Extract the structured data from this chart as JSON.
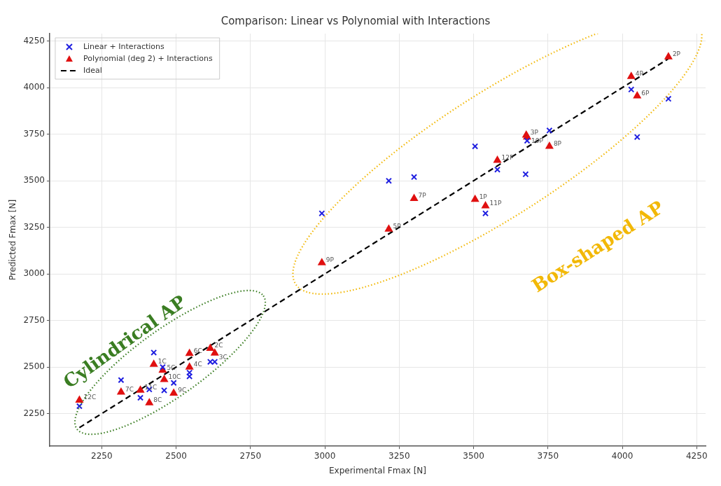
{
  "chart_data": {
    "type": "scatter",
    "title": "Comparison: Linear vs Polynomial with Interactions",
    "xlabel": "Experimental Fmax [N]",
    "ylabel": "Predicted Fmax [N]",
    "xlim": [
      2075,
      4280
    ],
    "ylim": [
      2075,
      4290
    ],
    "xticks": [
      2250,
      2500,
      2750,
      3000,
      3250,
      3500,
      3750,
      4000,
      4250
    ],
    "yticks": [
      2250,
      2500,
      2750,
      3000,
      3250,
      3500,
      3750,
      4000,
      4250
    ],
    "grid": true,
    "legend": "top left",
    "series": [
      {
        "name": "Linear + Interactions",
        "marker": "cross",
        "color": "#1f1fe0",
        "x": [
          2175,
          2315,
          2380,
          2410,
          2425,
          2455,
          2460,
          2492,
          2545,
          2545,
          2615,
          2630,
          2990,
          3215,
          3300,
          3505,
          3580,
          3540,
          3675,
          3680,
          3755,
          4030,
          4050,
          4155
        ],
        "values": [
          2290,
          2430,
          2335,
          2380,
          2578,
          2500,
          2375,
          2415,
          2450,
          2470,
          2528,
          2528,
          3325,
          3500,
          3520,
          3685,
          3560,
          3325,
          3535,
          3715,
          3770,
          3990,
          3735,
          3940
        ]
      },
      {
        "name": "Polynomial (deg 2) + Interactions",
        "marker": "triangle",
        "color": "#e01010",
        "x": [
          2175,
          2315,
          2380,
          2410,
          2425,
          2455,
          2460,
          2492,
          2545,
          2545,
          2615,
          2630,
          2990,
          3215,
          3300,
          3505,
          3540,
          3580,
          3677,
          3680,
          3755,
          4030,
          4050,
          4155
        ],
        "values": [
          2322,
          2365,
          2376,
          2308,
          2515,
          2483,
          2433,
          2360,
          2500,
          2573,
          2600,
          2575,
          3060,
          3240,
          3405,
          3400,
          3365,
          3610,
          3745,
          3735,
          3685,
          4060,
          3955,
          4165
        ]
      },
      {
        "name": "Ideal",
        "type": "line",
        "marker": "none",
        "line_style": "dashed",
        "color": "#000000",
        "x": [
          2175,
          4155
        ],
        "values": [
          2175,
          4155
        ]
      }
    ],
    "annotations": [
      {
        "text": "12C",
        "x": 2175,
        "y": 2322
      },
      {
        "text": "7C",
        "x": 2315,
        "y": 2365
      },
      {
        "text": "11C",
        "x": 2380,
        "y": 2376
      },
      {
        "text": "8C",
        "x": 2410,
        "y": 2308
      },
      {
        "text": "1C",
        "x": 2425,
        "y": 2515
      },
      {
        "text": "5C",
        "x": 2455,
        "y": 2483
      },
      {
        "text": "10C",
        "x": 2460,
        "y": 2433
      },
      {
        "text": "9C",
        "x": 2492,
        "y": 2360
      },
      {
        "text": "4C",
        "x": 2545,
        "y": 2500
      },
      {
        "text": "6C",
        "x": 2545,
        "y": 2573
      },
      {
        "text": "2C",
        "x": 2615,
        "y": 2600
      },
      {
        "text": "3C",
        "x": 2630,
        "y": 2575
      },
      {
        "text": "9P",
        "x": 2990,
        "y": 3060
      },
      {
        "text": "5P",
        "x": 3215,
        "y": 3240
      },
      {
        "text": "7P",
        "x": 3300,
        "y": 3405
      },
      {
        "text": "1P",
        "x": 3505,
        "y": 3400
      },
      {
        "text": "11P",
        "x": 3540,
        "y": 3365
      },
      {
        "text": "12P",
        "x": 3580,
        "y": 3610
      },
      {
        "text": "3P",
        "x": 3677,
        "y": 3745
      },
      {
        "text": "10P",
        "x": 3680,
        "y": 3735
      },
      {
        "text": "8P",
        "x": 3755,
        "y": 3685
      },
      {
        "text": "4P",
        "x": 4030,
        "y": 4060
      },
      {
        "text": "6P",
        "x": 4050,
        "y": 3955
      },
      {
        "text": "2P",
        "x": 4155,
        "y": 4165
      },
      "Cylindrical AP",
      "Box-shaped AP"
    ]
  }
}
